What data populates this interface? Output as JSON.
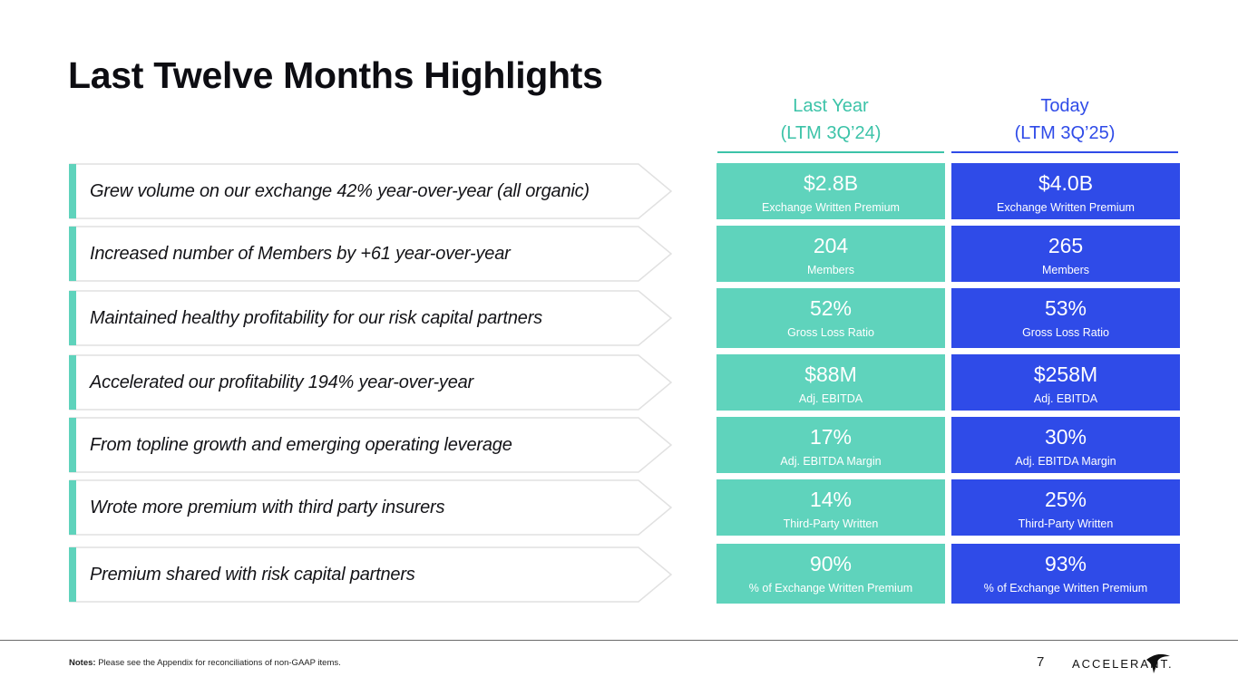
{
  "title": "Last Twelve Months Highlights",
  "columns": {
    "last": {
      "line1": "Last Year",
      "line2": "(LTM 3Q’24)"
    },
    "today": {
      "line1": "Today",
      "line2": "(LTM 3Q’25)"
    }
  },
  "highlights": [
    "Grew volume on our exchange 42% year-over-year (all organic)",
    "Increased number of Members by +61 year-over-year",
    "Maintained healthy profitability for our risk capital partners",
    "Accelerated our profitability 194% year-over-year",
    "From topline growth and emerging operating leverage",
    "Wrote more premium with third party insurers",
    "Premium shared with risk capital partners"
  ],
  "metrics": [
    {
      "last": "$2.8B",
      "today": "$4.0B",
      "label": "Exchange Written Premium"
    },
    {
      "last": "204",
      "today": "265",
      "label": "Members"
    },
    {
      "last": "52%",
      "today": "53%",
      "label": "Gross Loss Ratio"
    },
    {
      "last": "$88M",
      "today": "$258M",
      "label": "Adj. EBITDA"
    },
    {
      "last": "17%",
      "today": "30%",
      "label": "Adj. EBITDA Margin"
    },
    {
      "last": "14%",
      "today": "25%",
      "label": "Third-Party Written"
    },
    {
      "last": "90%",
      "today": "93%",
      "label": "% of Exchange Written Premium"
    }
  ],
  "footer": {
    "notes_label": "Notes:",
    "notes_text": "Please see the Appendix for reconciliations of non-GAAP items.",
    "page": "7",
    "logo_text": "ACCELERANT."
  },
  "colors": {
    "teal": "#5fd3bc",
    "blue": "#2f4be8"
  }
}
